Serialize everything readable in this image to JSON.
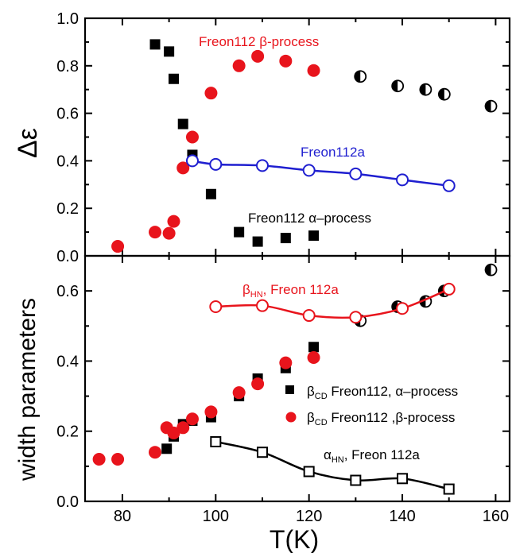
{
  "chart_data": [
    {
      "type": "scatter",
      "panel": "top",
      "xlabel": "T(K)",
      "ylabel": "Δε",
      "xlim": [
        72,
        163
      ],
      "ylim": [
        0,
        1.0
      ],
      "x_ticks": [
        "80",
        "100",
        "120",
        "140",
        "160"
      ],
      "y_ticks": [
        "0.0",
        "0.2",
        "0.4",
        "0.6",
        "0.8",
        "1.0"
      ],
      "grid": false,
      "annotations": [
        {
          "text": "Freon112 β-process",
          "color": "#e8141c"
        },
        {
          "text": "Freon112a",
          "color": "#1f1fd0"
        },
        {
          "text": "Freon112 α–process",
          "color": "#000000"
        }
      ],
      "series": [
        {
          "marker": "square-filled",
          "color": "#000000",
          "points": [
            [
              87,
              0.89
            ],
            [
              90,
              0.86
            ],
            [
              91,
              0.745
            ],
            [
              93,
              0.555
            ],
            [
              95,
              0.425
            ],
            [
              99,
              0.26
            ],
            [
              105,
              0.1
            ],
            [
              109,
              0.06
            ],
            [
              115,
              0.075
            ],
            [
              121,
              0.085
            ]
          ]
        },
        {
          "marker": "circle-filled",
          "color": "#e8141c",
          "points": [
            [
              79,
              0.04
            ],
            [
              87,
              0.1
            ],
            [
              90,
              0.095
            ],
            [
              91,
              0.145
            ],
            [
              93,
              0.37
            ],
            [
              95,
              0.5
            ],
            [
              99,
              0.685
            ],
            [
              105,
              0.8
            ],
            [
              109,
              0.84
            ],
            [
              115,
              0.82
            ],
            [
              121,
              0.78
            ]
          ]
        },
        {
          "marker": "circle-half",
          "color": "#000000",
          "points": [
            [
              131,
              0.755
            ],
            [
              139,
              0.715
            ],
            [
              145,
              0.7
            ],
            [
              149,
              0.68
            ],
            [
              159,
              0.63
            ]
          ]
        },
        {
          "marker": "circle-open",
          "color": "#1f1fd0",
          "line": true,
          "points": [
            [
              95,
              0.4
            ],
            [
              100,
              0.385
            ],
            [
              110,
              0.38
            ],
            [
              120,
              0.36
            ],
            [
              130,
              0.345
            ],
            [
              140,
              0.32
            ],
            [
              150,
              0.295
            ]
          ]
        }
      ]
    },
    {
      "type": "scatter",
      "panel": "bottom",
      "xlabel": "T(K)",
      "ylabel": "width parameters",
      "xlim": [
        72,
        163
      ],
      "ylim": [
        0,
        0.7
      ],
      "x_ticks": [
        "80",
        "100",
        "120",
        "140",
        "160"
      ],
      "y_ticks": [
        "0.0",
        "0.2",
        "0.4",
        "0.6"
      ],
      "grid": false,
      "annotations": [
        {
          "text": "β",
          "sub": "HN",
          "rest": ", Freon 112a",
          "color": "#e8141c"
        },
        {
          "text": "β",
          "sub": "CD",
          "rest": " Freon112, α–process",
          "color": "#000000"
        },
        {
          "text": "β",
          "sub": "CD",
          "rest": " Freon112 ,β-process",
          "color": "#000000"
        },
        {
          "text": "α",
          "sub": "HN",
          "rest": ", Freon 112a",
          "color": "#000000"
        }
      ],
      "series": [
        {
          "name": "β_CD Freon112, α–process",
          "marker": "square-filled",
          "color": "#000000",
          "points": [
            [
              89.5,
              0.15
            ],
            [
              91,
              0.185
            ],
            [
              93,
              0.22
            ],
            [
              95,
              0.23
            ],
            [
              99,
              0.24
            ],
            [
              105,
              0.3
            ],
            [
              109,
              0.35
            ],
            [
              115,
              0.38
            ],
            [
              121,
              0.44
            ]
          ]
        },
        {
          "name": "β_CD Freon112 ,β-process",
          "marker": "circle-filled",
          "color": "#e8141c",
          "points": [
            [
              75,
              0.12
            ],
            [
              79,
              0.12
            ],
            [
              87,
              0.14
            ],
            [
              89.5,
              0.21
            ],
            [
              91,
              0.195
            ],
            [
              93,
              0.21
            ],
            [
              95,
              0.235
            ],
            [
              99,
              0.255
            ],
            [
              105,
              0.31
            ],
            [
              109,
              0.335
            ],
            [
              115,
              0.395
            ],
            [
              121,
              0.41
            ]
          ]
        },
        {
          "marker": "circle-half",
          "color": "#000000",
          "points": [
            [
              131,
              0.515
            ],
            [
              139,
              0.555
            ],
            [
              145,
              0.57
            ],
            [
              149,
              0.6
            ],
            [
              159,
              0.66
            ]
          ]
        },
        {
          "marker": "circle-open",
          "color": "#e8141c",
          "line": true,
          "points": [
            [
              100,
              0.555
            ],
            [
              110,
              0.558
            ],
            [
              120,
              0.53
            ],
            [
              130,
              0.525
            ],
            [
              140,
              0.55
            ],
            [
              150,
              0.605
            ]
          ]
        },
        {
          "marker": "square-open",
          "color": "#000000",
          "line": true,
          "points": [
            [
              100,
              0.17
            ],
            [
              110,
              0.14
            ],
            [
              120,
              0.085
            ],
            [
              130,
              0.06
            ],
            [
              140,
              0.065
            ],
            [
              150,
              0.035
            ]
          ]
        }
      ]
    }
  ]
}
